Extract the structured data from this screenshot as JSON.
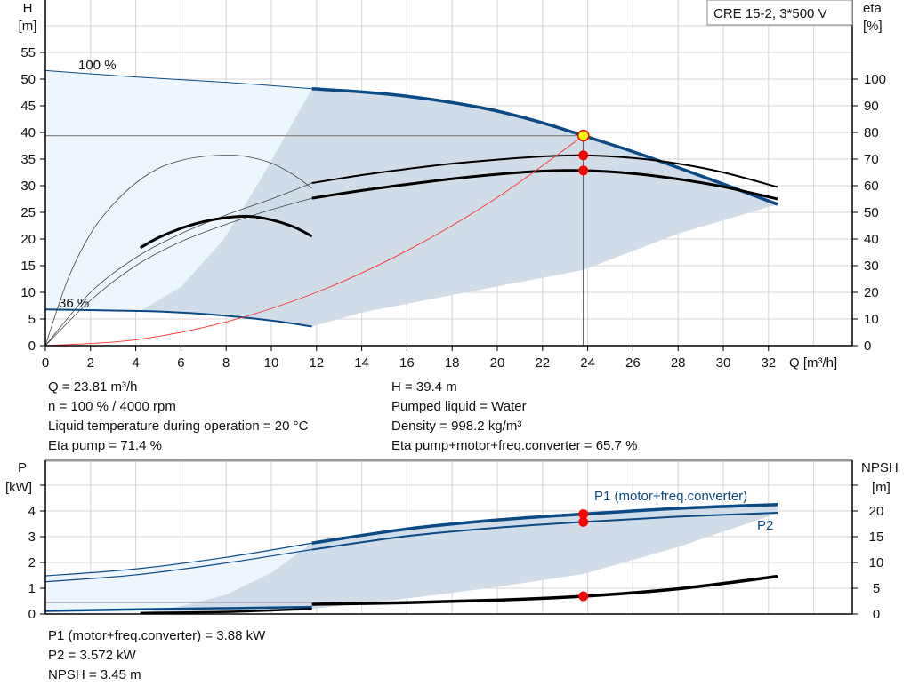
{
  "chart_data": [
    {
      "type": "line",
      "title": "CRE 15-2, 3*500 V",
      "xlabel": "Q [m³/h]",
      "ylabel": "H\n[m]",
      "y2label": "eta\n[%]",
      "xlim": [
        0,
        35.7
      ],
      "ylim": [
        0,
        65
      ],
      "y2lim": [
        0,
        130
      ],
      "xticks": [
        0,
        2,
        4,
        6,
        8,
        10,
        12,
        14,
        16,
        18,
        20,
        22,
        24,
        26,
        28,
        30,
        32
      ],
      "yticks": [
        0,
        5,
        10,
        15,
        20,
        25,
        30,
        35,
        40,
        45,
        50,
        55
      ],
      "y2ticks": [
        0,
        10,
        20,
        30,
        40,
        50,
        60,
        70,
        80,
        90,
        100
      ],
      "grid": true,
      "speed_labels": [
        "100 %",
        "36 %"
      ],
      "series": [
        {
          "key": "h100_thin",
          "axis": "H",
          "points": [
            [
              0,
              51.6
            ],
            [
              4,
              50.4
            ],
            [
              8,
              49.4
            ],
            [
              11.8,
              48.2
            ]
          ]
        },
        {
          "key": "h100",
          "axis": "H",
          "points": [
            [
              11.8,
              48.2
            ],
            [
              14,
              47.6
            ],
            [
              16,
              46.8
            ],
            [
              18,
              45.6
            ],
            [
              20,
              44.0
            ],
            [
              22,
              41.8
            ],
            [
              23.81,
              39.4
            ],
            [
              26,
              36.4
            ],
            [
              28,
              33.4
            ],
            [
              30,
              30.3
            ],
            [
              32.4,
              26.5
            ]
          ]
        },
        {
          "key": "h36",
          "axis": "H",
          "points": [
            [
              0,
              6.8
            ],
            [
              4.2,
              6.5
            ],
            [
              6,
              6.2
            ],
            [
              8,
              5.6
            ],
            [
              10,
              4.7
            ],
            [
              11.8,
              3.6
            ]
          ]
        },
        {
          "key": "eta_pump",
          "axis": "eta",
          "points": [
            [
              11.8,
              61
            ],
            [
              14,
              64
            ],
            [
              16,
              66.3
            ],
            [
              18,
              68.3
            ],
            [
              20,
              69.8
            ],
            [
              22,
              71
            ],
            [
              23.81,
              71.4
            ],
            [
              26,
              70.4
            ],
            [
              28,
              68.3
            ],
            [
              30,
              65
            ],
            [
              32.4,
              59.5
            ]
          ]
        },
        {
          "key": "eta_total",
          "axis": "eta",
          "points": [
            [
              11.8,
              55.3
            ],
            [
              14,
              58.2
            ],
            [
              16,
              60.5
            ],
            [
              18,
              62.6
            ],
            [
              20,
              64.3
            ],
            [
              22,
              65.5
            ],
            [
              23.81,
              65.7
            ],
            [
              26,
              64.6
            ],
            [
              28,
              62.5
            ],
            [
              30,
              59.6
            ],
            [
              32.4,
              55
            ]
          ]
        },
        {
          "key": "eta_pump_low",
          "axis": "eta",
          "points": [
            [
              0,
              0
            ],
            [
              1,
              25
            ],
            [
              2,
              42
            ],
            [
              3,
              53
            ],
            [
              4,
              61
            ],
            [
              5,
              66.5
            ],
            [
              6,
              69.5
            ],
            [
              7,
              71
            ],
            [
              8.2,
              71.5
            ],
            [
              9,
              70.8
            ],
            [
              10,
              68.5
            ],
            [
              11,
              64
            ],
            [
              11.8,
              59
            ]
          ]
        },
        {
          "key": "eta_thin_a",
          "axis": "eta",
          "points": [
            [
              0,
              0
            ],
            [
              2,
              20
            ],
            [
              4,
              33
            ],
            [
              6,
              42
            ],
            [
              8,
              49
            ],
            [
              10,
              55
            ],
            [
              11.8,
              61
            ]
          ]
        },
        {
          "key": "eta_thin_b",
          "axis": "eta",
          "points": [
            [
              0,
              0
            ],
            [
              2,
              17
            ],
            [
              4,
              30
            ],
            [
              6,
              39
            ],
            [
              8,
              45.5
            ],
            [
              10,
              51
            ],
            [
              11.8,
              55.3
            ]
          ]
        },
        {
          "key": "eta_low",
          "axis": "eta",
          "points": [
            [
              4.2,
              36.7
            ],
            [
              5,
              40.5
            ],
            [
              6,
              44
            ],
            [
              7,
              46.5
            ],
            [
              8,
              48
            ],
            [
              9,
              48.5
            ],
            [
              10,
              47.2
            ],
            [
              11,
              44.5
            ],
            [
              11.8,
              41
            ]
          ]
        },
        {
          "key": "system",
          "axis": "H",
          "points": [
            [
              0,
              0
            ],
            [
              4,
              1.1
            ],
            [
              8,
              4.45
            ],
            [
              12,
              10
            ],
            [
              16,
              17.8
            ],
            [
              20,
              27.8
            ],
            [
              23.81,
              39.4
            ]
          ]
        }
      ],
      "operating_point": {
        "Q": 23.81,
        "H": 39.4,
        "eta_pump": 71.4,
        "eta_total": 65.7
      }
    },
    {
      "type": "line",
      "xlim": [
        0,
        35.7
      ],
      "ylabel": "P\n[kW]",
      "y2label": "NPSH\n[m]",
      "ylim": [
        0,
        5.8
      ],
      "y2lim": [
        0,
        29
      ],
      "yticks": [
        0,
        1,
        2,
        3,
        4
      ],
      "y2ticks": [
        0,
        5,
        10,
        15,
        20
      ],
      "grid": true,
      "series": [
        {
          "key": "p1_thin",
          "name": "P1 (motor+freq.converter)",
          "axis": "P",
          "points": [
            [
              0,
              1.48
            ],
            [
              4,
              1.75
            ],
            [
              8,
              2.2
            ],
            [
              11.8,
              2.75
            ]
          ]
        },
        {
          "key": "p1",
          "name": "P1 (motor+freq.converter)",
          "axis": "P",
          "points": [
            [
              11.8,
              2.75
            ],
            [
              16,
              3.3
            ],
            [
              20,
              3.65
            ],
            [
              23.81,
              3.88
            ],
            [
              28,
              4.1
            ],
            [
              32.4,
              4.25
            ]
          ]
        },
        {
          "key": "p2_thin",
          "name": "P2",
          "axis": "P",
          "points": [
            [
              0,
              1.25
            ],
            [
              4,
              1.52
            ],
            [
              8,
              1.98
            ],
            [
              11.8,
              2.5
            ]
          ]
        },
        {
          "key": "p2",
          "name": "P2",
          "axis": "P",
          "points": [
            [
              11.8,
              2.5
            ],
            [
              16,
              3.02
            ],
            [
              20,
              3.35
            ],
            [
              23.81,
              3.572
            ],
            [
              28,
              3.78
            ],
            [
              32.4,
              3.93
            ]
          ]
        },
        {
          "key": "npsh",
          "axis": "NPSH",
          "points": [
            [
              11.8,
              1.9
            ],
            [
              16,
              2.2
            ],
            [
              20,
              2.7
            ],
            [
              23.81,
              3.45
            ],
            [
              28,
              4.9
            ],
            [
              32.4,
              7.3
            ]
          ]
        },
        {
          "key": "p_low",
          "axis": "P",
          "points": [
            [
              0,
              0.12
            ],
            [
              4.2,
              0.18
            ],
            [
              11.8,
              0.27
            ]
          ]
        },
        {
          "key": "npsh_low",
          "axis": "NPSH",
          "points": [
            [
              4.2,
              0.2
            ],
            [
              8,
              0.4
            ],
            [
              11.8,
              1.0
            ]
          ]
        }
      ],
      "operating_point": {
        "Q": 23.81,
        "P1": 3.88,
        "P2": 3.572,
        "NPSH": 3.45
      }
    }
  ],
  "info": {
    "left": [
      "Q = 23.81 m³/h",
      "n = 100 % / 4000 rpm",
      "Liquid temperature during operation = 20 °C",
      "Eta pump = 71.4 %"
    ],
    "right": [
      "H = 39.4 m",
      "Pumped liquid = Water",
      "Density = 998.2 kg/m³",
      "Eta pump+motor+freq.converter = 65.7 %"
    ],
    "bottom": [
      "P1 (motor+freq.converter) = 3.88 kW",
      "P2 = 3.572 kW",
      "NPSH = 3.45 m"
    ]
  },
  "colors": {
    "curve_blue": "#0b4a85",
    "red": "#ff0000",
    "shade_dark": "#d0dce8",
    "shade_light": "#eef6fd",
    "grid": "#d4d4d4",
    "op_point": "#ffff00"
  }
}
